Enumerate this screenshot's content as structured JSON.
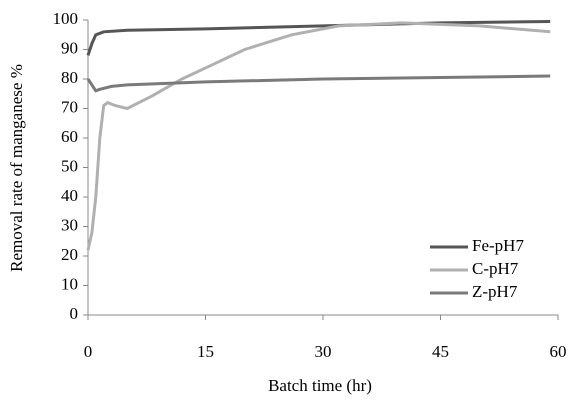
{
  "chart_data": {
    "type": "line",
    "xlabel": "Batch time (hr)",
    "ylabel": "Removal rate of manganese %",
    "xlim": [
      0,
      60
    ],
    "ylim": [
      0,
      100
    ],
    "xticks": [
      0,
      15,
      30,
      45,
      60
    ],
    "yticks": [
      0,
      10,
      20,
      30,
      40,
      50,
      60,
      70,
      80,
      90,
      100
    ],
    "grid": false,
    "legend": "lower right",
    "series": [
      {
        "name": "Fe-pH7",
        "color": "#555555",
        "x": [
          0,
          0.5,
          1,
          2,
          5,
          15,
          30,
          45,
          59
        ],
        "values": [
          88,
          92,
          95,
          96,
          96.5,
          97,
          98,
          99,
          99.5
        ]
      },
      {
        "name": "C-pH7",
        "color": "#b0b0b0",
        "x": [
          0,
          0.5,
          1,
          1.5,
          2,
          2.5,
          3.5,
          5,
          8,
          12,
          16,
          20,
          26,
          32,
          40,
          50,
          59
        ],
        "values": [
          22,
          28,
          40,
          60,
          71,
          72,
          71,
          70,
          74,
          80,
          85,
          90,
          95,
          98,
          99,
          98,
          96
        ]
      },
      {
        "name": "Z-pH7",
        "color": "#7a7a7a",
        "x": [
          0,
          0.5,
          1,
          1.5,
          3,
          5,
          15,
          30,
          45,
          59
        ],
        "values": [
          80,
          78,
          76,
          76.5,
          77.5,
          78,
          79,
          80,
          80.5,
          81
        ]
      }
    ]
  }
}
